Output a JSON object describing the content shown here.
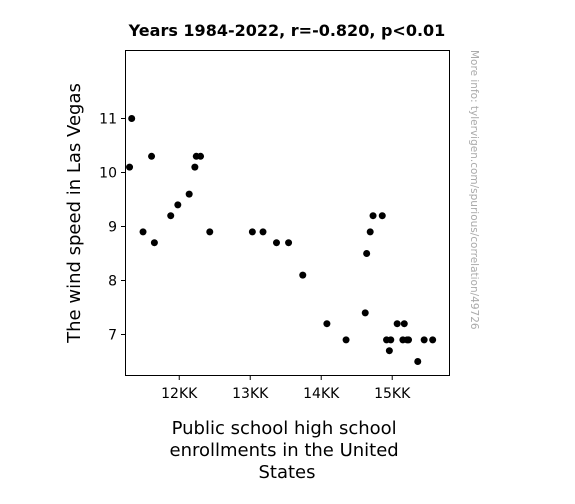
{
  "chart_data": {
    "type": "scatter",
    "title": "Years 1984-2022, r=-0.820, p<0.01",
    "xlabel": "Public school high school enrollments in the United States",
    "xlabel_lines": [
      "Public school high school",
      "enrollments in the United",
      "States"
    ],
    "ylabel": "The wind speed in Las Vegas",
    "xlim": [
      11250000,
      15800000
    ],
    "ylim": [
      6.25,
      12.25
    ],
    "xticks": [
      {
        "value": 12000000,
        "label": "12KK"
      },
      {
        "value": 13000000,
        "label": "13KK"
      },
      {
        "value": 14000000,
        "label": "14KK"
      },
      {
        "value": 15000000,
        "label": "15KK"
      }
    ],
    "yticks": [
      {
        "value": 7,
        "label": "7"
      },
      {
        "value": 8,
        "label": "8"
      },
      {
        "value": 9,
        "label": "9"
      },
      {
        "value": 10,
        "label": "10"
      },
      {
        "value": 11,
        "label": "11"
      }
    ],
    "grid": false,
    "point_color": "#000000",
    "points": [
      {
        "x": 11300000,
        "y": 10.1
      },
      {
        "x": 11330000,
        "y": 11.0
      },
      {
        "x": 11490000,
        "y": 8.9
      },
      {
        "x": 11610000,
        "y": 10.3
      },
      {
        "x": 11650000,
        "y": 8.7
      },
      {
        "x": 11880000,
        "y": 9.2
      },
      {
        "x": 11980000,
        "y": 9.4
      },
      {
        "x": 12140000,
        "y": 9.6
      },
      {
        "x": 12220000,
        "y": 10.1
      },
      {
        "x": 12240000,
        "y": 10.3
      },
      {
        "x": 12300000,
        "y": 10.3
      },
      {
        "x": 12430000,
        "y": 8.9
      },
      {
        "x": 13030000,
        "y": 8.9
      },
      {
        "x": 13180000,
        "y": 8.9
      },
      {
        "x": 13370000,
        "y": 8.7
      },
      {
        "x": 13540000,
        "y": 8.7
      },
      {
        "x": 13740000,
        "y": 8.1
      },
      {
        "x": 14080000,
        "y": 7.2
      },
      {
        "x": 14350000,
        "y": 6.9
      },
      {
        "x": 14620000,
        "y": 7.4
      },
      {
        "x": 14640000,
        "y": 8.5
      },
      {
        "x": 14690000,
        "y": 8.9
      },
      {
        "x": 14730000,
        "y": 9.2
      },
      {
        "x": 14860000,
        "y": 9.2
      },
      {
        "x": 14920000,
        "y": 6.9
      },
      {
        "x": 14960000,
        "y": 6.7
      },
      {
        "x": 14980000,
        "y": 6.9
      },
      {
        "x": 15070000,
        "y": 7.2
      },
      {
        "x": 15150000,
        "y": 6.9
      },
      {
        "x": 15170000,
        "y": 7.2
      },
      {
        "x": 15210000,
        "y": 6.9
      },
      {
        "x": 15230000,
        "y": 6.9
      },
      {
        "x": 15360000,
        "y": 6.5
      },
      {
        "x": 15450000,
        "y": 6.9
      },
      {
        "x": 15570000,
        "y": 6.9
      }
    ],
    "watermark": "More info: tylervigen.com/spurious/correlation/49726"
  }
}
